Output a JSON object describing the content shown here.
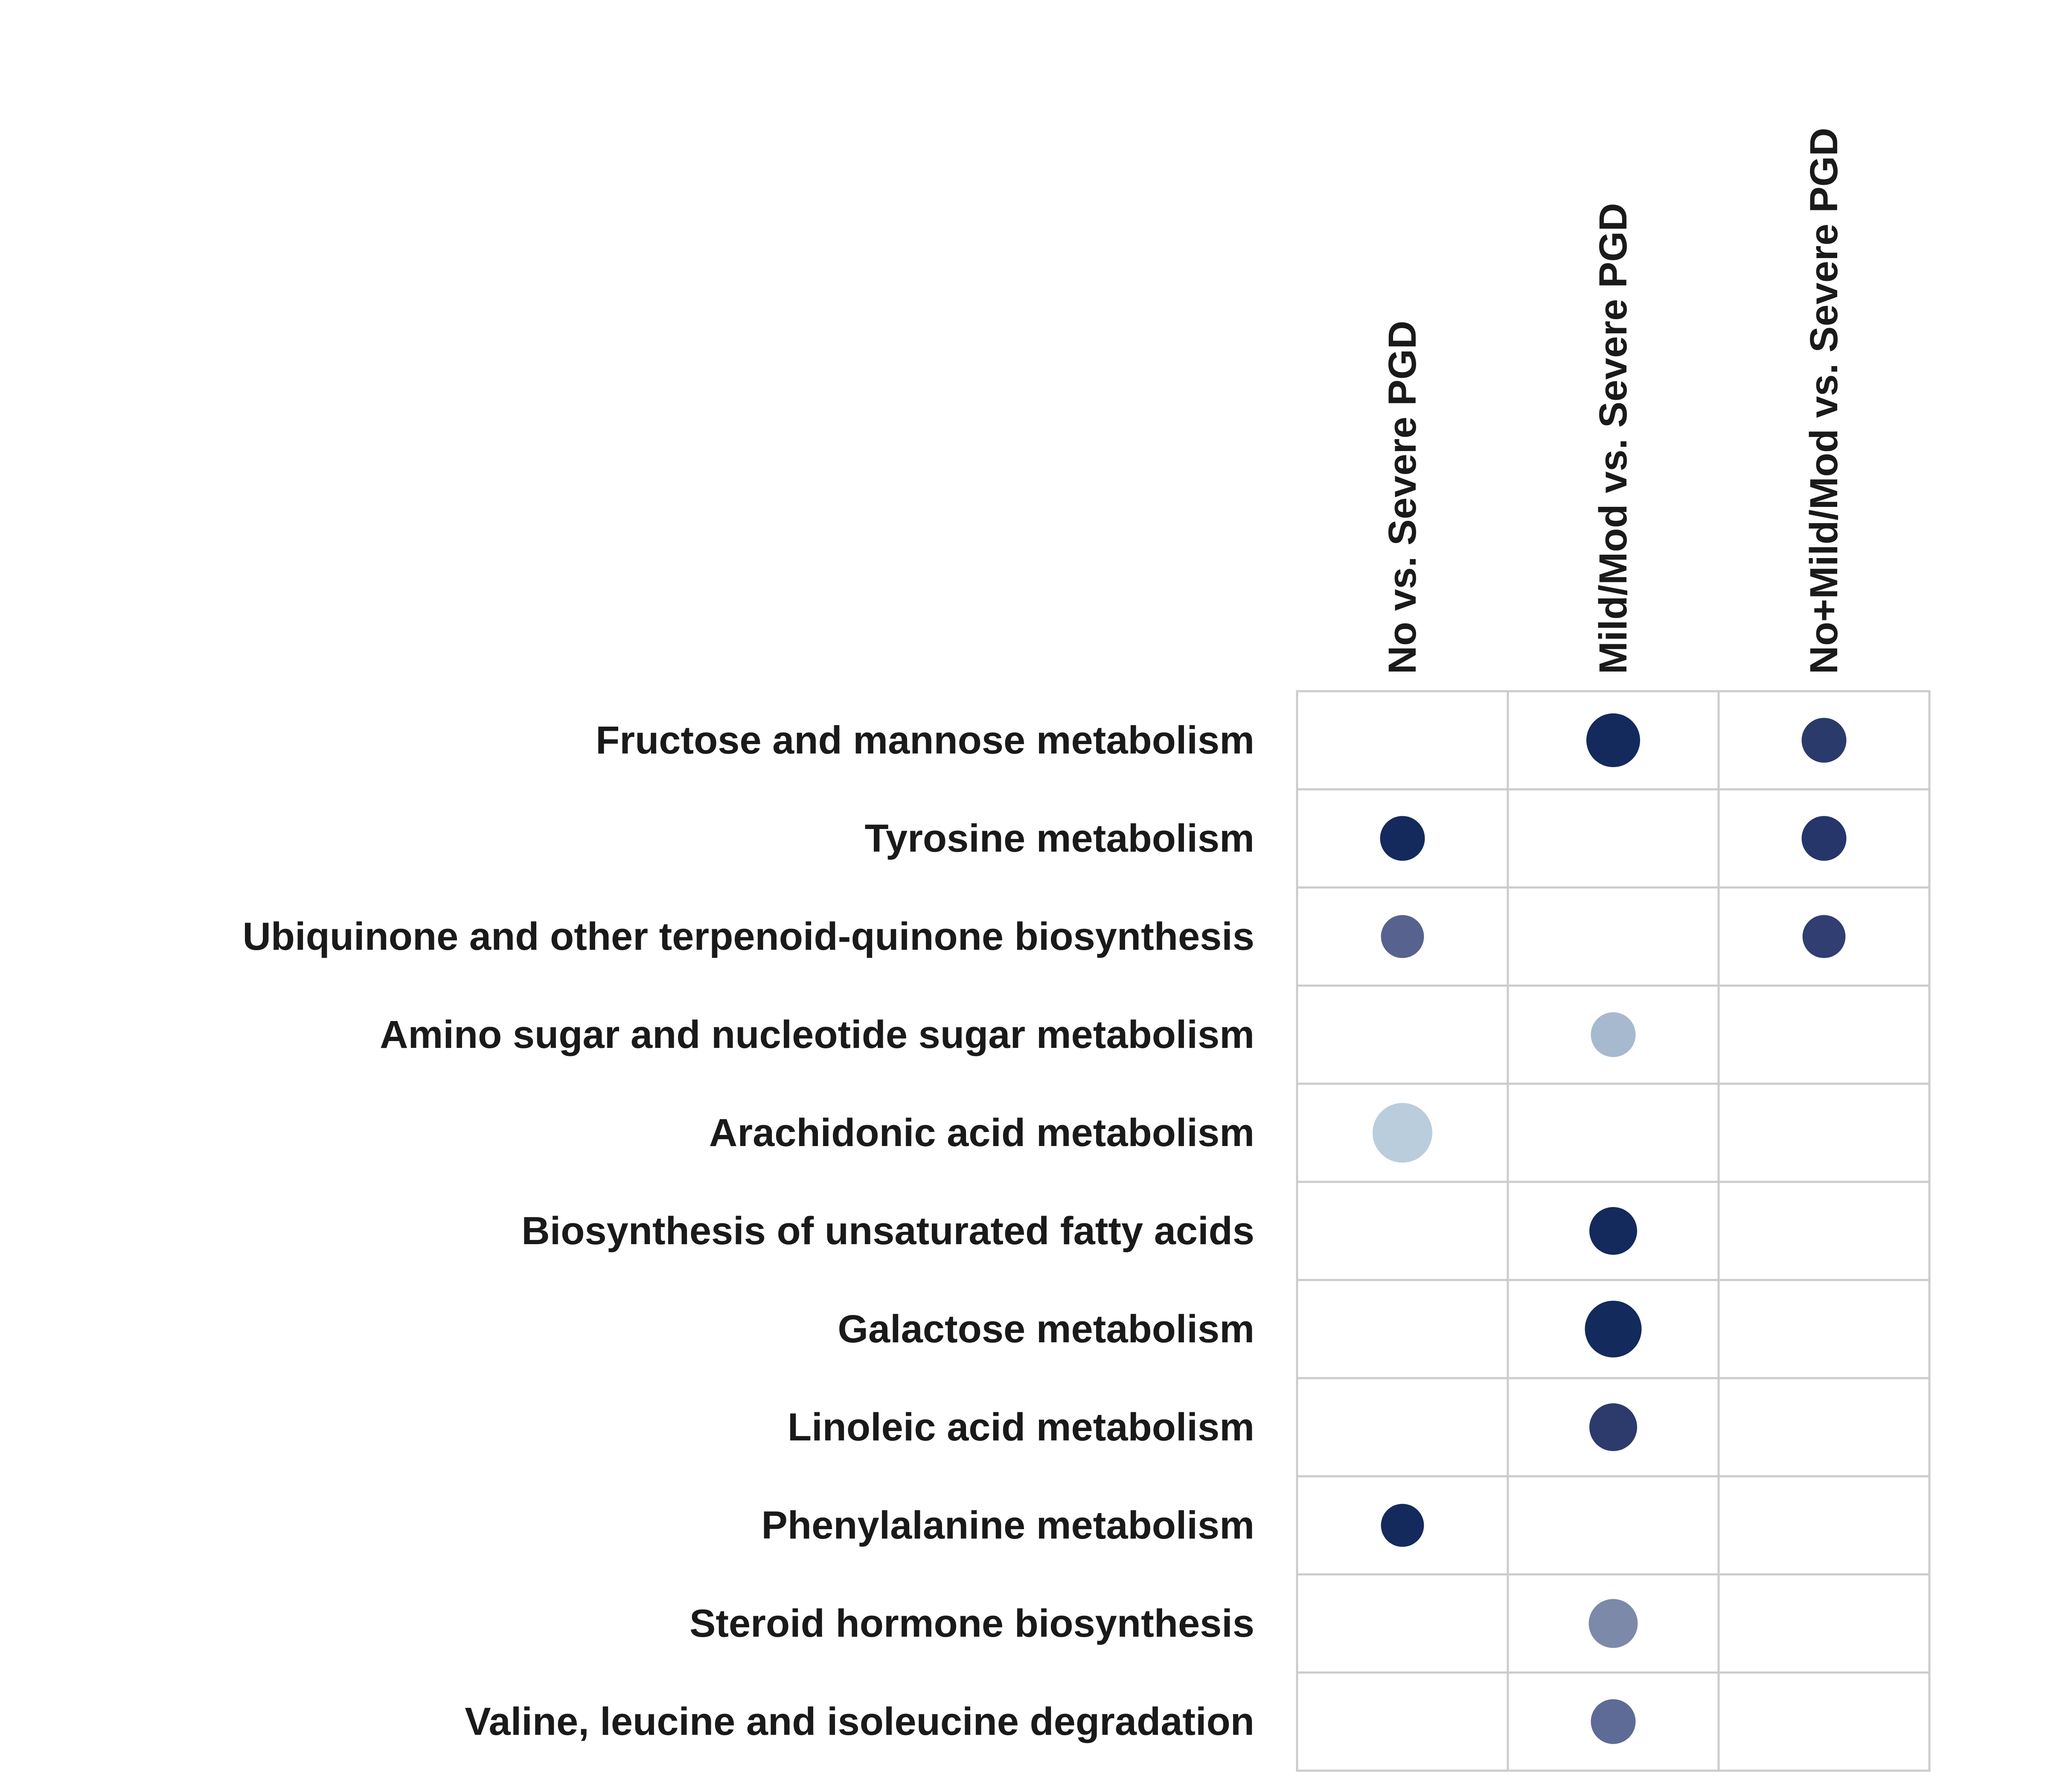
{
  "chart_data": {
    "type": "dot-matrix",
    "title": "",
    "xlabel": "",
    "ylabel": "",
    "columns": [
      "No vs. Severe PGD",
      "Mild/Mod vs. Severe PGD",
      "No+Mild/Mod vs. Severe PGD"
    ],
    "rows": [
      "Fructose and mannose metabolism",
      "Tyrosine metabolism",
      "Ubiquinone and other terpenoid-quinone biosynthesis",
      "Amino sugar and nucleotide sugar metabolism",
      "Arachidonic acid metabolism",
      "Biosynthesis of unsaturated fatty acids",
      "Galactose metabolism",
      "Linoleic acid metabolism",
      "Phenylalanine metabolism",
      "Steroid hormone biosynthesis",
      "Valine, leucine and isoleucine degradation"
    ],
    "points": [
      {
        "row": 0,
        "col": 1,
        "size": 0.9,
        "color": "#142a5c"
      },
      {
        "row": 0,
        "col": 2,
        "size": 0.75,
        "color": "#2a3a6b"
      },
      {
        "row": 1,
        "col": 0,
        "size": 0.75,
        "color": "#142a5c"
      },
      {
        "row": 1,
        "col": 2,
        "size": 0.75,
        "color": "#26356a"
      },
      {
        "row": 2,
        "col": 0,
        "size": 0.72,
        "color": "#57628f"
      },
      {
        "row": 2,
        "col": 2,
        "size": 0.72,
        "color": "#313e72"
      },
      {
        "row": 3,
        "col": 1,
        "size": 0.75,
        "color": "#a7b9cf"
      },
      {
        "row": 4,
        "col": 0,
        "size": 1.0,
        "color": "#bacddd"
      },
      {
        "row": 5,
        "col": 1,
        "size": 0.8,
        "color": "#142a5c"
      },
      {
        "row": 6,
        "col": 1,
        "size": 0.95,
        "color": "#132a5d"
      },
      {
        "row": 7,
        "col": 1,
        "size": 0.8,
        "color": "#2c3a6c"
      },
      {
        "row": 8,
        "col": 0,
        "size": 0.72,
        "color": "#142a5c"
      },
      {
        "row": 9,
        "col": 1,
        "size": 0.82,
        "color": "#7c89a9"
      },
      {
        "row": 10,
        "col": 1,
        "size": 0.75,
        "color": "#5e6b96"
      }
    ],
    "grid": true,
    "legend": "none"
  }
}
